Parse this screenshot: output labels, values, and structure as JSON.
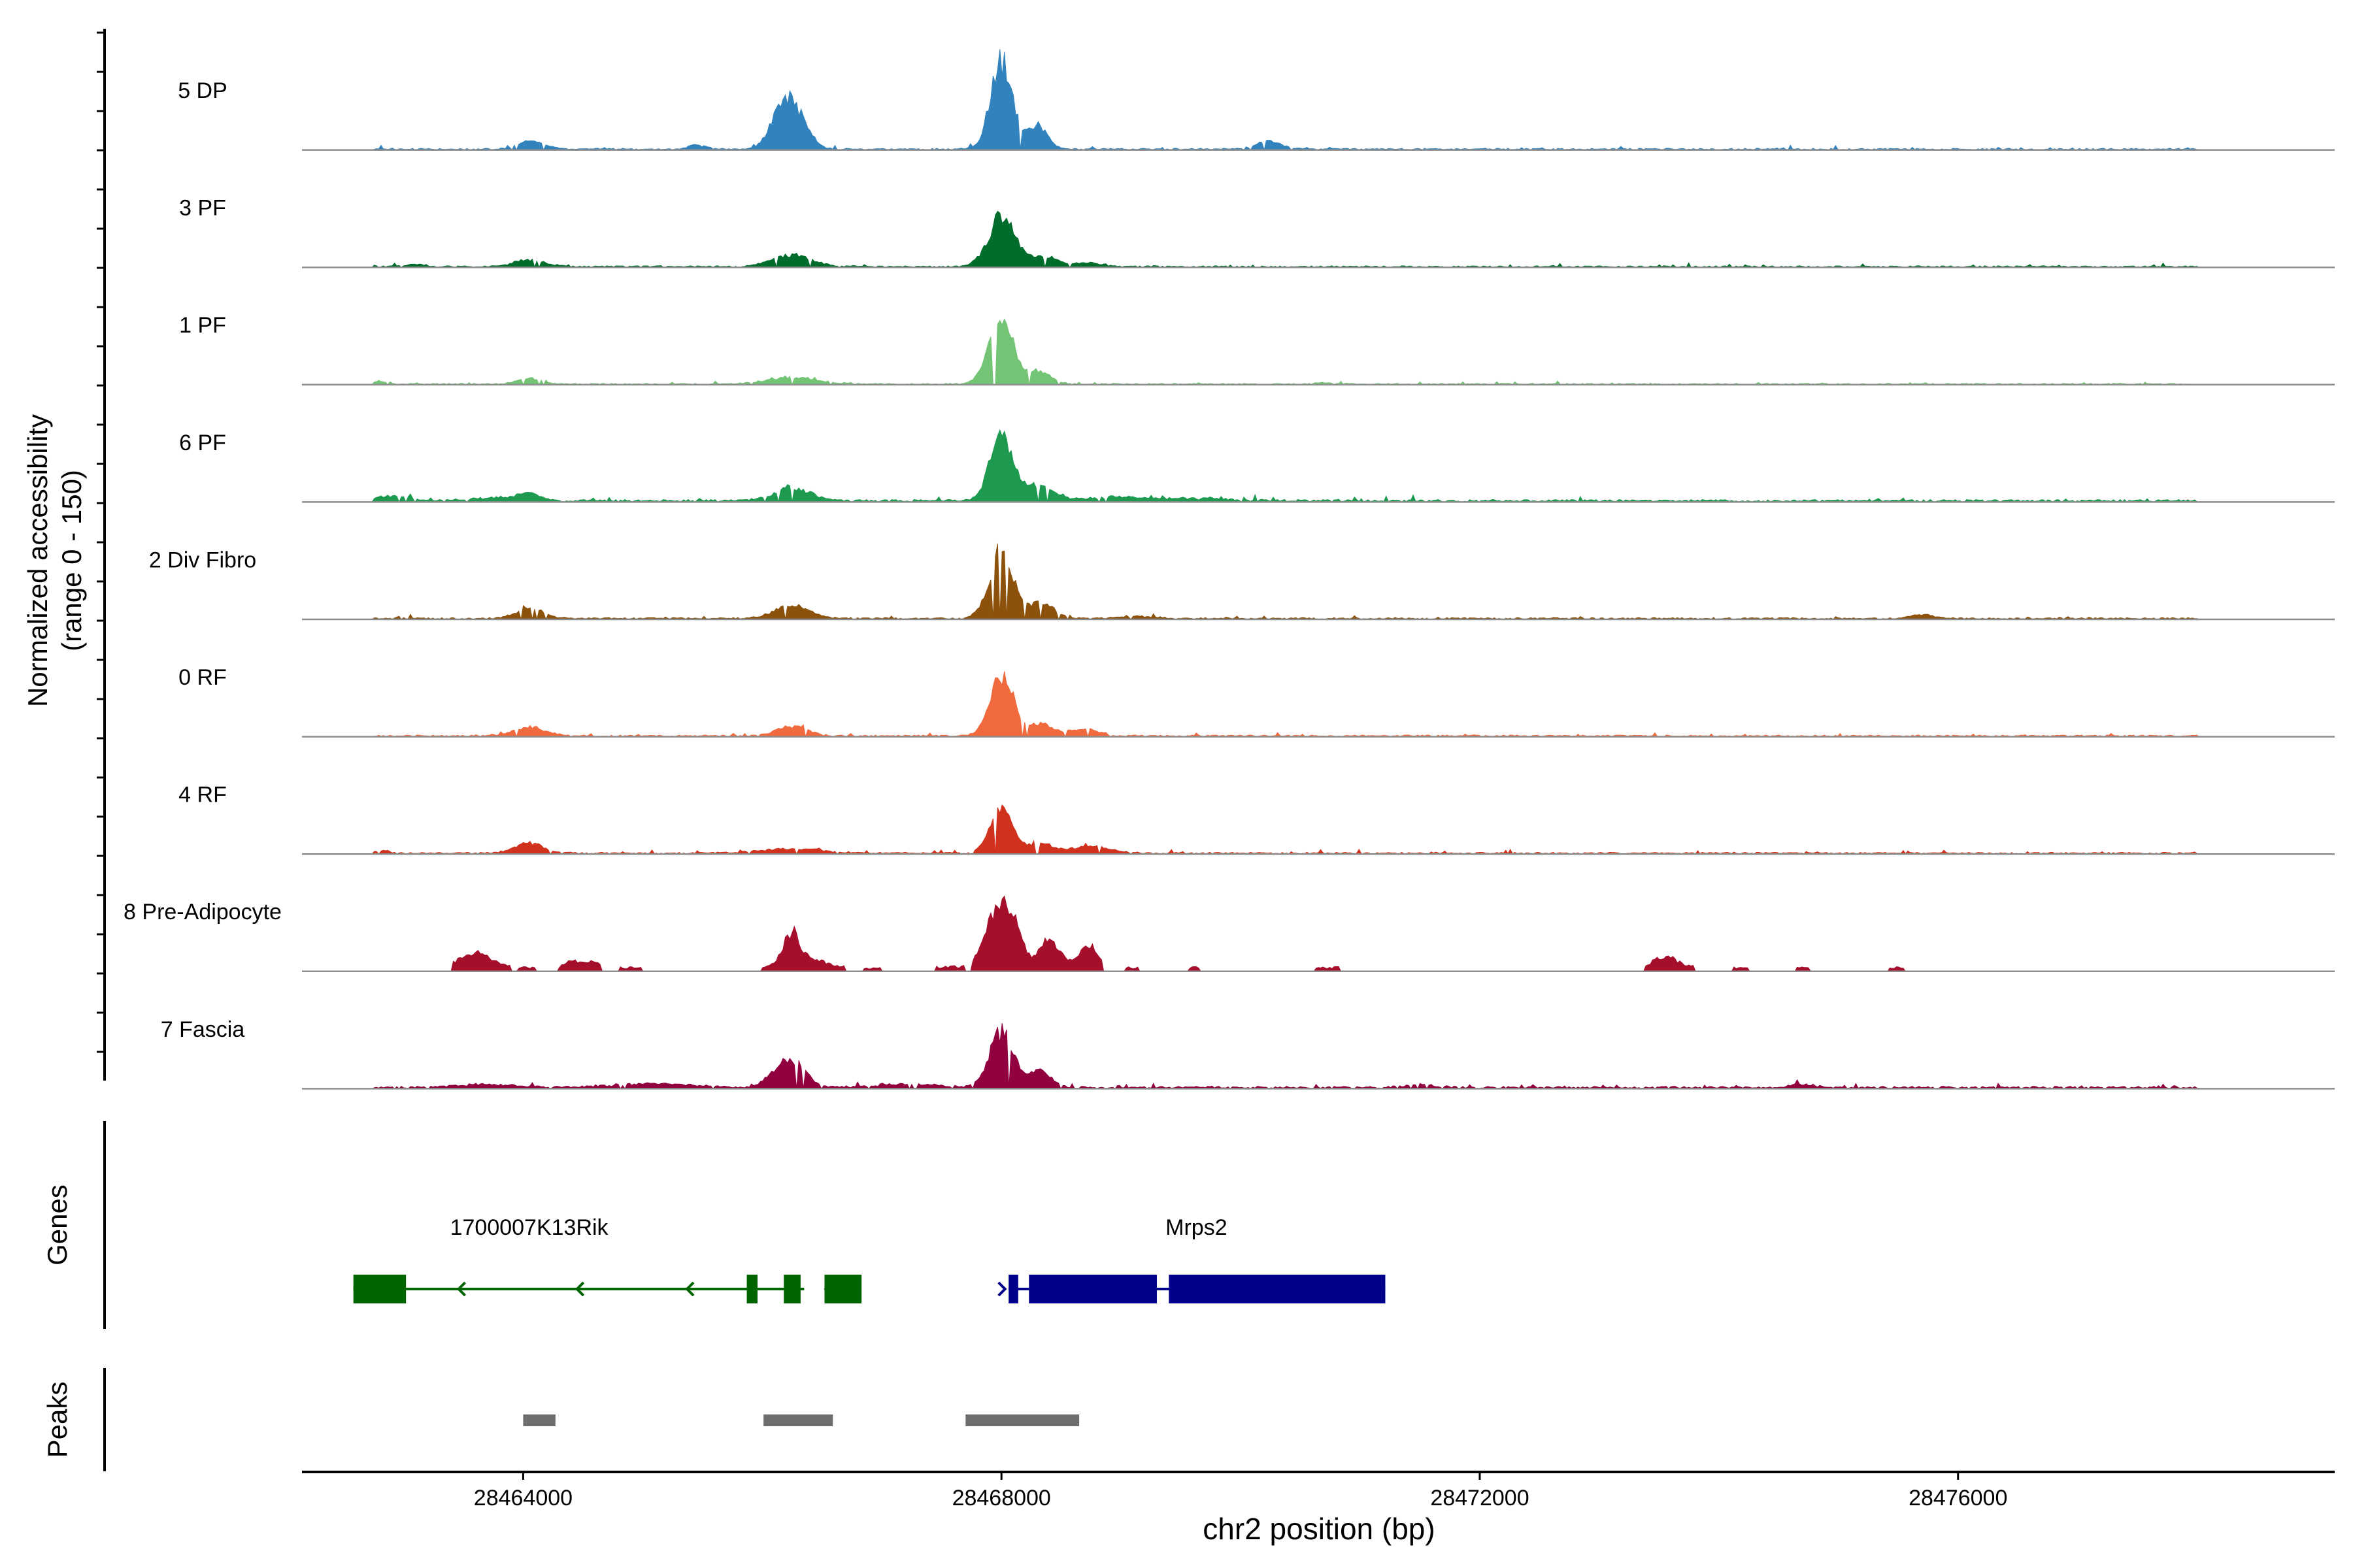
{
  "chart_data": {
    "type": "area",
    "subtype": "genome-coverage-track",
    "y_axis_label_line1": "Normalized accessibility",
    "y_axis_label_line2": "(range 0 - 150)",
    "y_range": [
      0,
      150
    ],
    "xlabel": "chr2 position (bp)",
    "x_range": [
      28462150,
      28479150
    ],
    "x_ticks": [
      28464000,
      28468000,
      28472000,
      28476000
    ],
    "x_tick_labels": [
      "28464000",
      "28468000",
      "28472000",
      "28476000"
    ],
    "tracks": [
      {
        "name": "5 DP",
        "color": "#3182bd",
        "lo": 28462750,
        "hi": 28478000,
        "base": 1.6,
        "min_gap": 100,
        "peaks": [
          [
            28468000,
            120,
            90
          ],
          [
            28466250,
            58,
            110
          ],
          [
            28466120,
            22,
            90
          ],
          [
            28468300,
            34,
            80
          ],
          [
            28464060,
            11,
            110
          ],
          [
            28470230,
            11,
            100
          ],
          [
            28465450,
            5,
            70
          ]
        ]
      },
      {
        "name": "3 PF",
        "color": "#006d2c",
        "lo": 28462750,
        "hi": 28478000,
        "base": 1.4,
        "min_gap": 80,
        "peaks": [
          [
            28468000,
            68,
            110
          ],
          [
            28468350,
            14,
            120
          ],
          [
            28466250,
            16,
            160
          ],
          [
            28464050,
            9,
            130
          ],
          [
            28463100,
            3,
            80
          ],
          [
            28468750,
            5,
            100
          ]
        ]
      },
      {
        "name": "1 PF",
        "color": "#74c476",
        "lo": 28462750,
        "hi": 28478000,
        "base": 1.2,
        "min_gap": 120,
        "peaks": [
          [
            28468000,
            87,
            105
          ],
          [
            28468320,
            17,
            90
          ],
          [
            28466250,
            9,
            200
          ],
          [
            28464050,
            8,
            90
          ],
          [
            28462800,
            4,
            40
          ],
          [
            28470700,
            2,
            80
          ]
        ]
      },
      {
        "name": "6 PF",
        "color": "#1d9a50",
        "lo": 28462750,
        "hi": 28478000,
        "base": 2.3,
        "min_gap": 40,
        "peaks": [
          [
            28468000,
            87,
            95
          ],
          [
            28468320,
            22,
            120
          ],
          [
            28466250,
            17,
            150
          ],
          [
            28464050,
            9,
            90
          ],
          [
            28462900,
            7,
            120
          ],
          [
            28463800,
            4,
            200
          ],
          [
            28469000,
            5,
            260
          ],
          [
            28469700,
            3,
            250
          ]
        ]
      },
      {
        "name": "2 Div Fibro",
        "color": "#8c510a",
        "lo": 28462750,
        "hi": 28478000,
        "base": 1.6,
        "min_gap": 70,
        "peaks": [
          [
            28468000,
            93,
            100
          ],
          [
            28468330,
            20,
            110
          ],
          [
            28466250,
            18,
            140
          ],
          [
            28464050,
            14,
            110
          ],
          [
            28475700,
            5,
            100
          ],
          [
            28469150,
            3,
            150
          ]
        ]
      },
      {
        "name": "0 RF",
        "color": "#f16a3e",
        "lo": 28462750,
        "hi": 28478000,
        "base": 1.5,
        "min_gap": 70,
        "peaks": [
          [
            28468000,
            83,
            95
          ],
          [
            28468330,
            16,
            120
          ],
          [
            28468700,
            10,
            100
          ],
          [
            28466250,
            13,
            130
          ],
          [
            28464050,
            12,
            130
          ]
        ]
      },
      {
        "name": "4 RF",
        "color": "#d0321e",
        "lo": 28462750,
        "hi": 28478000,
        "base": 1.6,
        "min_gap": 70,
        "peaks": [
          [
            28468000,
            60,
            95
          ],
          [
            28468330,
            12,
            110
          ],
          [
            28468750,
            9,
            160
          ],
          [
            28466250,
            6,
            250
          ],
          [
            28464050,
            14,
            110
          ],
          [
            28462800,
            3,
            80
          ]
        ]
      },
      {
        "name": "8 Pre-Adipocyte",
        "color": "#a50f2c",
        "lo": 28463300,
        "hi": 28477000,
        "base": 0,
        "min_gap": 25,
        "peaks": [
          [
            28467950,
            68,
            90
          ],
          [
            28468100,
            52,
            80
          ],
          [
            28468380,
            33,
            70
          ],
          [
            28466250,
            55,
            70
          ],
          [
            28466450,
            8,
            80
          ],
          [
            28468720,
            30,
            70
          ],
          [
            28468500,
            18,
            80
          ],
          [
            28463600,
            18,
            120
          ],
          [
            28464500,
            15,
            90
          ],
          [
            28473520,
            18,
            100
          ]
        ],
        "islands": [
          [
            28463400,
            28463900,
            7
          ],
          [
            28463950,
            28464100,
            5
          ],
          [
            28464300,
            28464450,
            6
          ],
          [
            28464550,
            28464650,
            5
          ],
          [
            28464800,
            28465000,
            5
          ],
          [
            28466000,
            28466200,
            6
          ],
          [
            28466350,
            28466700,
            7
          ],
          [
            28466850,
            28467000,
            4
          ],
          [
            28467450,
            28467700,
            6
          ],
          [
            28467750,
            28468200,
            8
          ],
          [
            28468200,
            28468450,
            6
          ],
          [
            28468650,
            28468850,
            7
          ],
          [
            28469040,
            28469150,
            5
          ],
          [
            28469570,
            28469650,
            5
          ],
          [
            28470620,
            28470820,
            5
          ],
          [
            28473550,
            28473800,
            7
          ],
          [
            28474110,
            28474240,
            5
          ],
          [
            28474640,
            28474750,
            5
          ],
          [
            28475420,
            28475550,
            5
          ]
        ]
      },
      {
        "name": "7 Fascia",
        "color": "#91003f",
        "lo": 28462750,
        "hi": 28478000,
        "base": 2.2,
        "min_gap": 40,
        "peaks": [
          [
            28468000,
            75,
            100
          ],
          [
            28468320,
            22,
            90
          ],
          [
            28466250,
            37,
            110
          ],
          [
            28466080,
            10,
            80
          ],
          [
            28463700,
            4,
            250
          ],
          [
            28465100,
            5,
            300
          ],
          [
            28467200,
            5,
            250
          ],
          [
            28471500,
            4,
            120
          ],
          [
            28474700,
            4,
            100
          ]
        ]
      }
    ],
    "genes_label": "Genes",
    "genes": [
      {
        "name": "1700007K13Rik",
        "label_x": 28464050,
        "color": "#006400",
        "strand": "-",
        "start": 28462580,
        "end": 28466350,
        "exons": [
          [
            28462580,
            28463020
          ],
          [
            28465870,
            28465960
          ],
          [
            28466180,
            28466320
          ],
          [
            28466520,
            28466830
          ]
        ],
        "arrows": [
          28463460,
          28464450,
          28465370,
          28466530
        ]
      },
      {
        "name": "Mrps2",
        "label_x": 28469630,
        "color": "#00008b",
        "strand": "+",
        "start": 28468060,
        "end": 28471210,
        "exons": [
          [
            28468060,
            28468140
          ],
          [
            28468230,
            28469300
          ],
          [
            28469400,
            28471210
          ]
        ],
        "arrows": [
          28468030
        ]
      }
    ],
    "peaks_label": "Peaks",
    "peak_regions": [
      [
        28464000,
        28464270
      ],
      [
        28466010,
        28466590
      ],
      [
        28467700,
        28468650
      ]
    ]
  }
}
